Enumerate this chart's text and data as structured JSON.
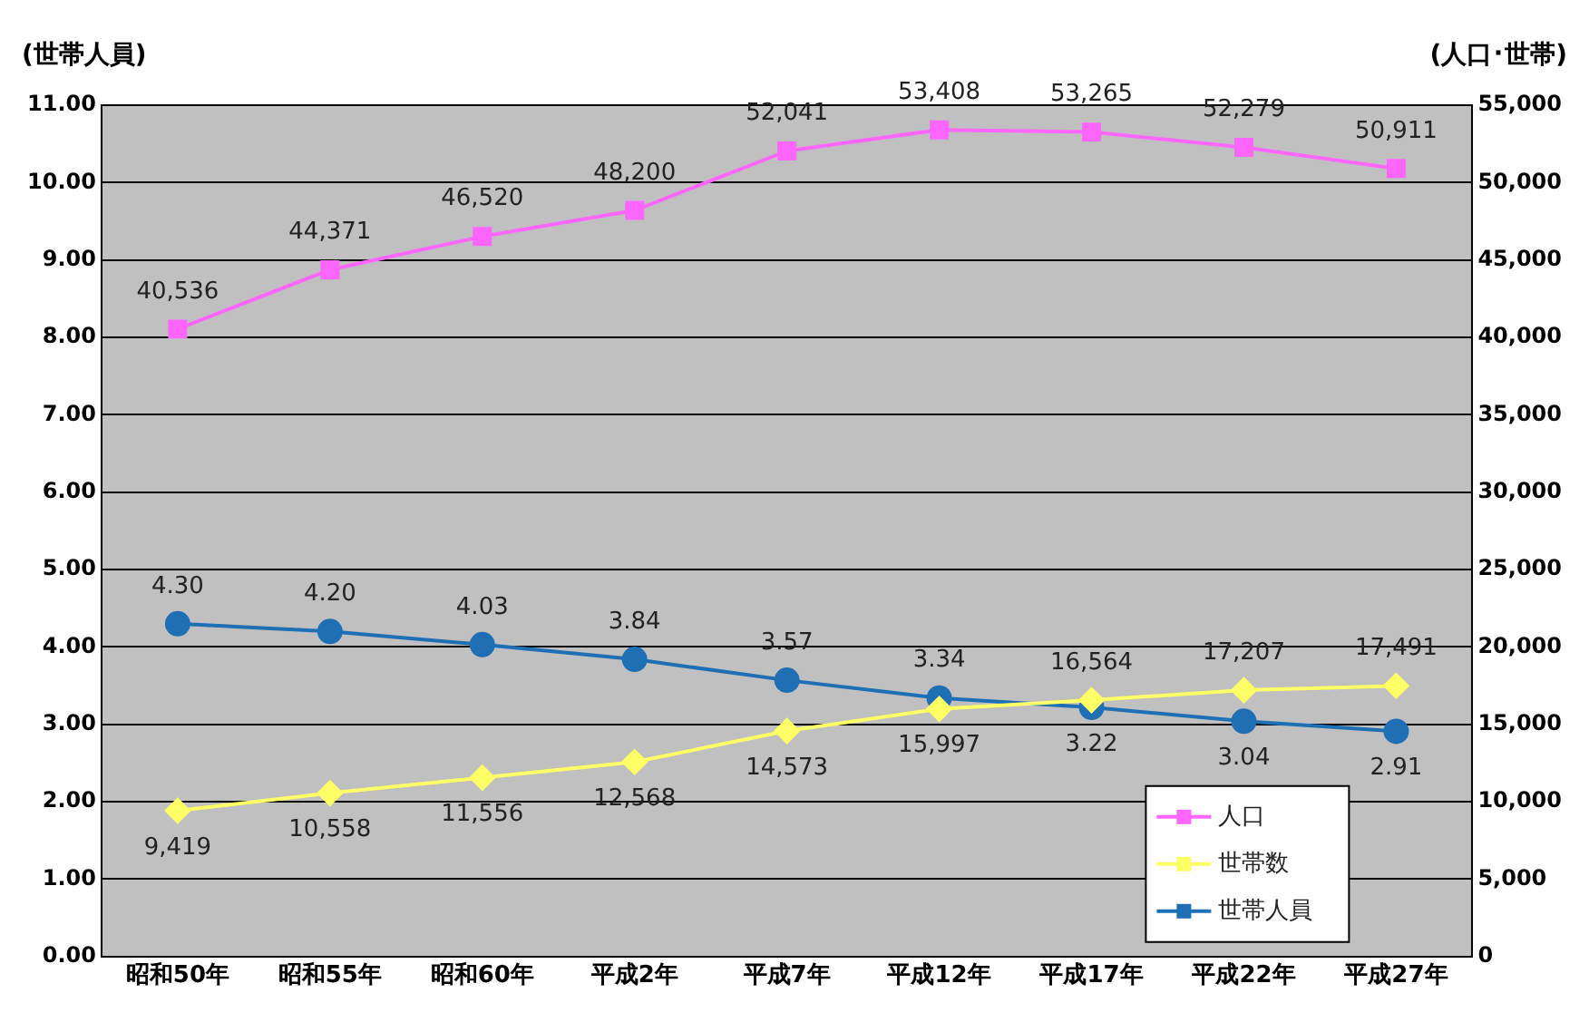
{
  "chart_data": {
    "type": "line",
    "categories": [
      "昭和50年",
      "昭和55年",
      "昭和60年",
      "平成2年",
      "平成7年",
      "平成12年",
      "平成17年",
      "平成22年",
      "平成27年"
    ],
    "ylabel": "(世帯人員)",
    "y2label": "(人口･世帯)",
    "series": [
      {
        "name": "人口",
        "color": "#ff66ff",
        "marker": "square",
        "axis": "y2",
        "values": [
          40536,
          44371,
          46520,
          48200,
          52041,
          53408,
          53265,
          52279,
          50911
        ],
        "value_labels": [
          "40,536",
          "44,371",
          "46,520",
          "48,200",
          "52,041",
          "53,408",
          "53,265",
          "52,279",
          "50,911"
        ]
      },
      {
        "name": "世帯数",
        "color": "#ffff66",
        "marker": "diamond",
        "axis": "y2",
        "values": [
          9419,
          10558,
          11556,
          12568,
          14573,
          15997,
          16564,
          17207,
          17491
        ],
        "value_labels": [
          "9,419",
          "10,558",
          "11,556",
          "12,568",
          "14,573",
          "15,997",
          "16,564",
          "17,207",
          "17,491"
        ]
      },
      {
        "name": "世帯人員",
        "color": "#1f6fb4",
        "marker": "circle",
        "axis": "y",
        "values": [
          4.3,
          4.2,
          4.03,
          3.84,
          3.57,
          3.34,
          3.22,
          3.04,
          2.91
        ],
        "value_labels": [
          "4.30",
          "4.20",
          "4.03",
          "3.84",
          "3.57",
          "3.34",
          "3.22",
          "3.04",
          "2.91"
        ]
      }
    ],
    "ylim": [
      0,
      11
    ],
    "yticks": [
      {
        "value": 0,
        "label": "0.00"
      },
      {
        "value": 1,
        "label": "1.00"
      },
      {
        "value": 2,
        "label": "2.00"
      },
      {
        "value": 3,
        "label": "3.00"
      },
      {
        "value": 4,
        "label": "4.00"
      },
      {
        "value": 5,
        "label": "5.00"
      },
      {
        "value": 6,
        "label": "6.00"
      },
      {
        "value": 7,
        "label": "7.00"
      },
      {
        "value": 8,
        "label": "8.00"
      },
      {
        "value": 9,
        "label": "9.00"
      },
      {
        "value": 10,
        "label": "10.00"
      },
      {
        "value": 11,
        "label": "11.00"
      }
    ],
    "y2lim": [
      0,
      55000
    ],
    "y2ticks": [
      0,
      {
        "value": 5000,
        "label": "5,000"
      },
      {
        "value": 10000,
        "label": "10,000"
      },
      {
        "value": 15000,
        "label": "15,000"
      },
      {
        "value": 20000,
        "label": "20,000"
      },
      {
        "value": 25000,
        "label": "25,000"
      },
      {
        "value": 30000,
        "label": "30,000"
      },
      {
        "value": 35000,
        "label": "35,000"
      },
      {
        "value": 40000,
        "label": "40,000"
      },
      {
        "value": 45000,
        "label": "45,000"
      },
      {
        "value": 50000,
        "label": "50,000"
      },
      {
        "value": 55000,
        "label": "55,000"
      }
    ],
    "grid": "y",
    "legend": "bottom right",
    "line_style": "solid"
  }
}
